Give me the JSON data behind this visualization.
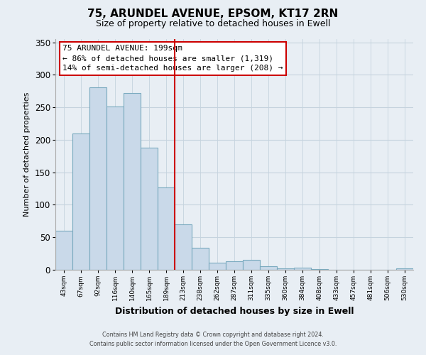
{
  "title": "75, ARUNDEL AVENUE, EPSOM, KT17 2RN",
  "subtitle": "Size of property relative to detached houses in Ewell",
  "xlabel": "Distribution of detached houses by size in Ewell",
  "ylabel": "Number of detached properties",
  "bar_labels": [
    "43sqm",
    "67sqm",
    "92sqm",
    "116sqm",
    "140sqm",
    "165sqm",
    "189sqm",
    "213sqm",
    "238sqm",
    "262sqm",
    "287sqm",
    "311sqm",
    "335sqm",
    "360sqm",
    "384sqm",
    "408sqm",
    "433sqm",
    "457sqm",
    "481sqm",
    "506sqm",
    "530sqm"
  ],
  "bar_values": [
    60,
    210,
    281,
    251,
    272,
    188,
    127,
    70,
    34,
    11,
    13,
    15,
    6,
    2,
    3,
    1,
    0,
    0,
    0,
    0,
    2
  ],
  "bar_color": "#c9d9e9",
  "bar_edge_color": "#7aaabf",
  "vline_x": 6.5,
  "vline_color": "#cc0000",
  "annotation_title": "75 ARUNDEL AVENUE: 199sqm",
  "annotation_line1": "← 86% of detached houses are smaller (1,319)",
  "annotation_line2": "14% of semi-detached houses are larger (208) →",
  "annotation_box_facecolor": "#ffffff",
  "annotation_box_edgecolor": "#cc0000",
  "ylim": [
    0,
    355
  ],
  "yticks": [
    0,
    50,
    100,
    150,
    200,
    250,
    300,
    350
  ],
  "footer_line1": "Contains HM Land Registry data © Crown copyright and database right 2024.",
  "footer_line2": "Contains public sector information licensed under the Open Government Licence v3.0.",
  "bg_color": "#e8eef4",
  "plot_bg_color": "#e8eef4",
  "grid_color": "#c5d3de",
  "title_fontsize": 11,
  "subtitle_fontsize": 9
}
